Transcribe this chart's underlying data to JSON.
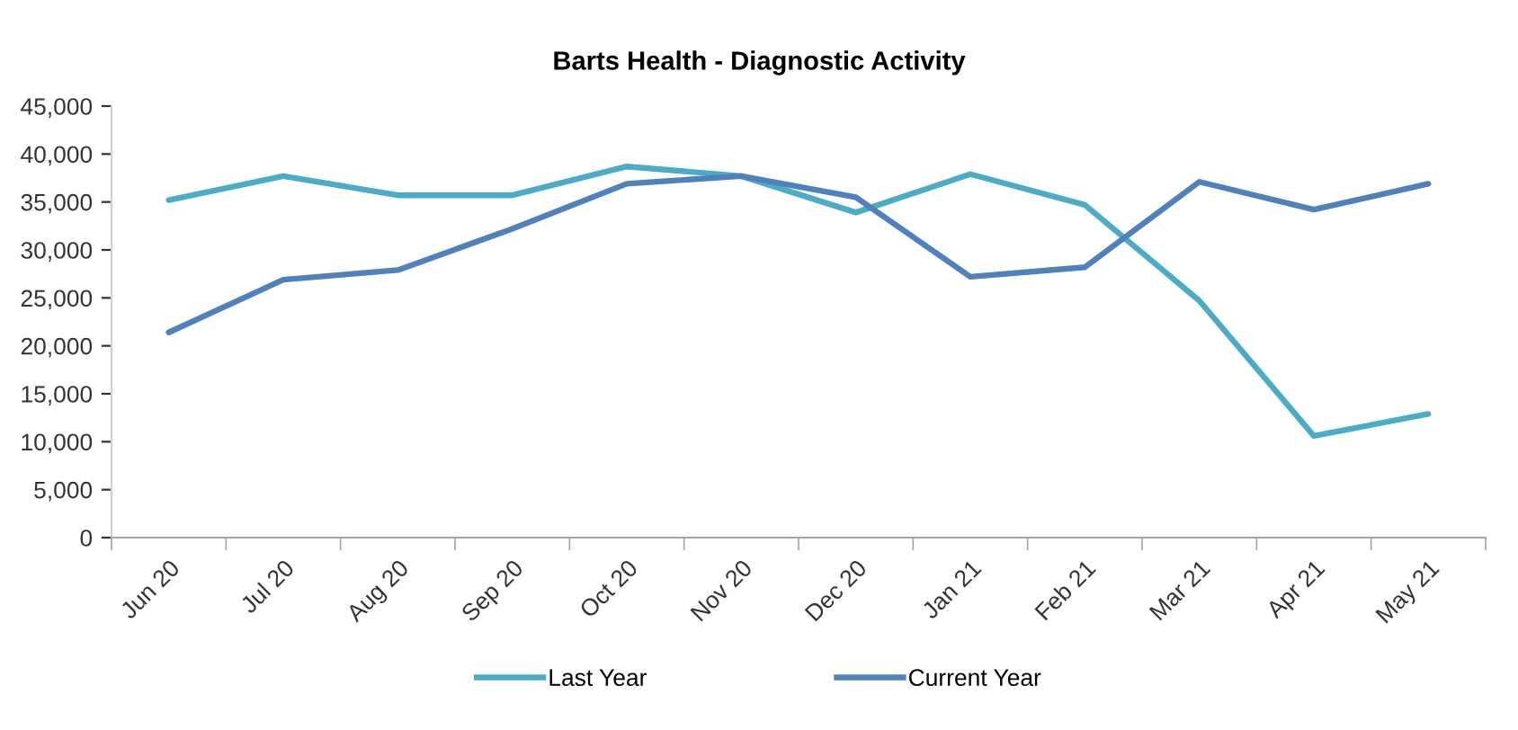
{
  "chart_data": {
    "type": "line",
    "title": "Barts Health - Diagnostic Activity",
    "categories": [
      "Jun 20",
      "Jul 20",
      "Aug 20",
      "Sep 20",
      "Oct 20",
      "Nov 20",
      "Dec 20",
      "Jan 21",
      "Feb 21",
      "Mar 21",
      "Apr 21",
      "May 21"
    ],
    "series": [
      {
        "name": "Last Year",
        "color": "#4bacc6",
        "values": [
          35200,
          37700,
          35700,
          35700,
          38700,
          37700,
          33900,
          37900,
          34700,
          24700,
          10600,
          12900
        ]
      },
      {
        "name": "Current Year",
        "color": "#4f81bd",
        "values": [
          21400,
          26900,
          27900,
          32200,
          36900,
          37700,
          35500,
          27200,
          28200,
          37100,
          34200,
          36900
        ]
      }
    ],
    "ylim": [
      0,
      45000
    ],
    "yticks": [
      {
        "value": 0,
        "label": "0"
      },
      {
        "value": 5000,
        "label": "5,000"
      },
      {
        "value": 10000,
        "label": "10,000"
      },
      {
        "value": 15000,
        "label": "15,000"
      },
      {
        "value": 20000,
        "label": "20,000"
      },
      {
        "value": 25000,
        "label": "25,000"
      },
      {
        "value": 30000,
        "label": "30,000"
      },
      {
        "value": 35000,
        "label": "35,000"
      },
      {
        "value": 40000,
        "label": "40,000"
      },
      {
        "value": 45000,
        "label": "45,000"
      }
    ],
    "grid": false,
    "legend": "bottom",
    "marker": "none",
    "line_style": "solid"
  }
}
